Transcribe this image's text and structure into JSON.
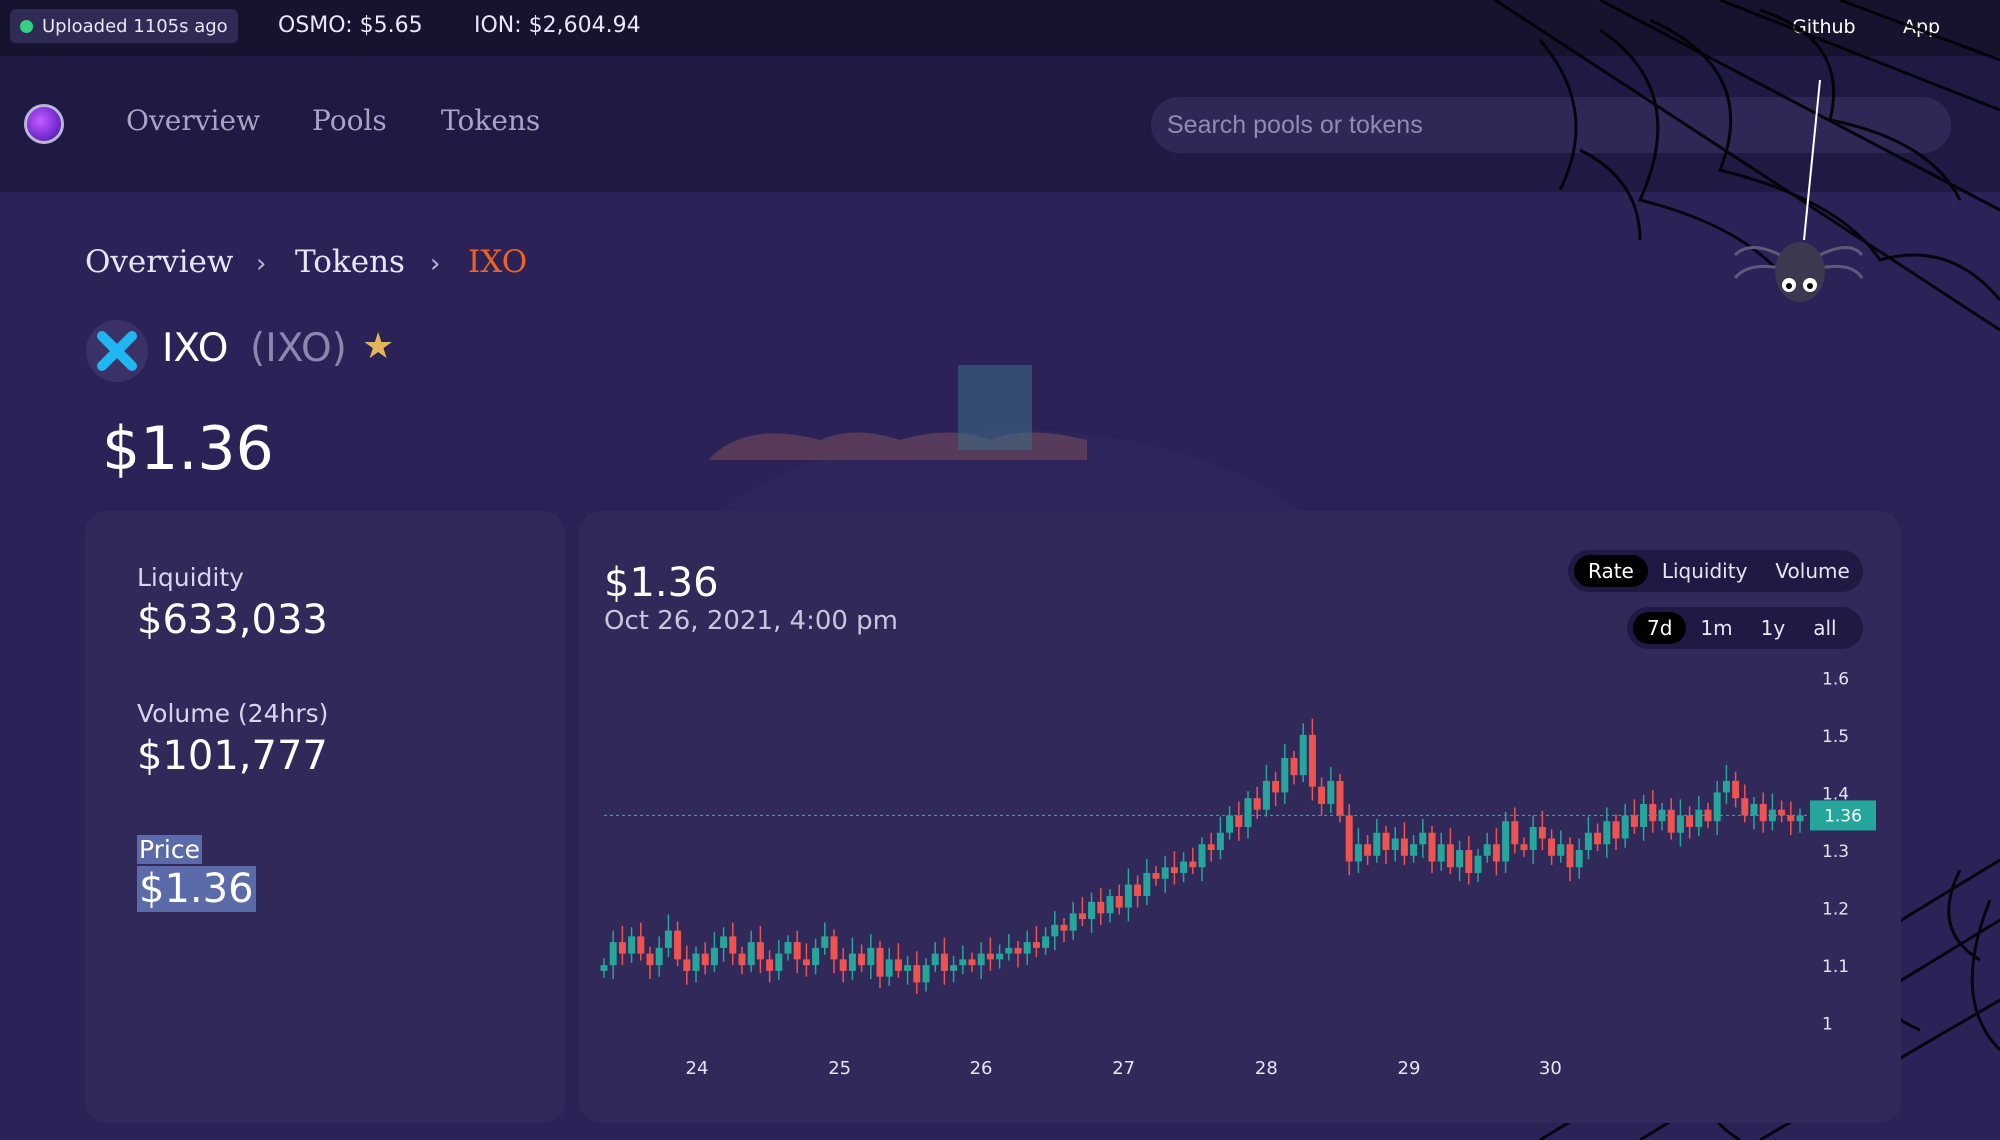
{
  "topbar": {
    "status_label": "Uploaded 1105s ago",
    "osmo_price": "OSMO: $5.65",
    "ion_price": "ION: $2,604.94",
    "links": [
      "Github",
      "App"
    ]
  },
  "nav": {
    "items": [
      "Overview",
      "Pools",
      "Tokens"
    ],
    "search_placeholder": "Search pools or tokens"
  },
  "breadcrumb": [
    "Overview",
    "Tokens",
    "IXO"
  ],
  "token": {
    "name": "IXO",
    "symbol": "(IXO)",
    "price": "$1.36"
  },
  "stats": {
    "liquidity_label": "Liquidity",
    "liquidity_value": "$633,033",
    "volume_label": "Volume (24hrs)",
    "volume_value": "$101,777",
    "price_label": "Price",
    "price_value": "$1.36"
  },
  "chart_header": {
    "price": "$1.36",
    "date": "Oct 26, 2021, 4:00 pm",
    "type_tabs": [
      "Rate",
      "Liquidity",
      "Volume"
    ],
    "type_selected": "Rate",
    "range_tabs": [
      "7d",
      "1m",
      "1y",
      "all"
    ],
    "range_selected": "7d"
  },
  "colors": {
    "up": "#26a69a",
    "down": "#ef5350",
    "accent": "#f0631c",
    "current_price_tag": "#26a69a"
  },
  "chart_data": {
    "type": "candlestick",
    "x_ticks": [
      "24",
      "25",
      "26",
      "27",
      "28",
      "29",
      "30"
    ],
    "y_ticks": [
      1,
      1.1,
      1.2,
      1.3,
      1.4,
      1.5,
      1.6
    ],
    "ylim": [
      0.97,
      1.63
    ],
    "current_price": 1.36,
    "current_price_label": "1.36",
    "grid": false,
    "close": [
      1.1,
      1.14,
      1.12,
      1.15,
      1.12,
      1.1,
      1.13,
      1.16,
      1.11,
      1.09,
      1.12,
      1.1,
      1.13,
      1.15,
      1.12,
      1.1,
      1.14,
      1.11,
      1.09,
      1.12,
      1.14,
      1.11,
      1.1,
      1.13,
      1.15,
      1.11,
      1.09,
      1.12,
      1.1,
      1.13,
      1.08,
      1.11,
      1.09,
      1.1,
      1.07,
      1.1,
      1.12,
      1.09,
      1.1,
      1.11,
      1.1,
      1.12,
      1.11,
      1.12,
      1.13,
      1.12,
      1.14,
      1.13,
      1.15,
      1.17,
      1.16,
      1.19,
      1.18,
      1.21,
      1.19,
      1.22,
      1.2,
      1.24,
      1.22,
      1.26,
      1.25,
      1.27,
      1.26,
      1.28,
      1.27,
      1.31,
      1.3,
      1.33,
      1.36,
      1.34,
      1.39,
      1.37,
      1.42,
      1.4,
      1.46,
      1.43,
      1.5,
      1.41,
      1.38,
      1.42,
      1.36,
      1.28,
      1.31,
      1.29,
      1.33,
      1.3,
      1.32,
      1.29,
      1.31,
      1.33,
      1.28,
      1.31,
      1.27,
      1.3,
      1.26,
      1.29,
      1.31,
      1.28,
      1.35,
      1.31,
      1.3,
      1.34,
      1.32,
      1.29,
      1.31,
      1.27,
      1.3,
      1.33,
      1.31,
      1.35,
      1.32,
      1.36,
      1.34,
      1.38,
      1.35,
      1.37,
      1.33,
      1.36,
      1.34,
      1.37,
      1.35,
      1.4,
      1.42,
      1.39,
      1.36,
      1.38,
      1.35,
      1.37,
      1.36,
      1.35,
      1.36
    ]
  }
}
